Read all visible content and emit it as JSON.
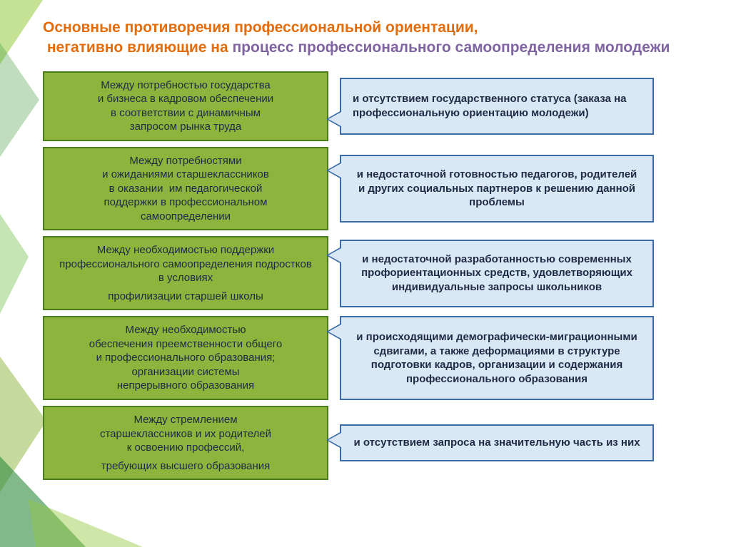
{
  "title_html": "<span style='color:#e46c0a'>Основные противоречия профессиональной ориентации,</span><br><span style='color:#e46c0a'>&nbsp;негативно влияющие на </span><span style='color:#8064a2'>процесс профессионального самоопределения молодежи</span>",
  "title_color_1": "#e46c0a",
  "title_color_2": "#8064a2",
  "left_bg": "#8db53e",
  "left_border": "#4a7d1a",
  "left_text_color": "#1f2a44",
  "right_bg": "#dae7f4",
  "right_border": "#3a6ca8",
  "right_text_color": "#1f2a44",
  "rows": [
    {
      "left": "Между потребностью государства<br>и бизнеса в кадровом обеспечении<br>в соответствии с динамичным<br>запросом рынка труда",
      "right": "и отсутствием государственного статуса (заказа на профессиональную ориентацию молодежи)",
      "right_bold": true,
      "tail_pos": "bottom",
      "left_h": 90,
      "right_h": 80
    },
    {
      "left": "Между потребностями<br>и ожиданиями старшеклассников<br>в оказании&nbsp; им педагогической<br>поддержки в профессиональном<br>самоопределении",
      "right": "и недостаточной готовностью педагогов, родителей и других социальных партнеров к решению данной проблемы",
      "right_bold": true,
      "right_align": "center",
      "tail_pos": "top",
      "left_h": 108,
      "right_h": 95
    },
    {
      "left": "Между необходимостью поддержки профессионального самоопределения подростков в условиях<br><div style='height:6px'></div>профилизации старшей школы",
      "right": "и недостаточной разработанностью современных профориентационных средств, удовлетворяющих индивидуальные запросы школьников",
      "right_bold": true,
      "right_align": "center",
      "tail_pos": "top",
      "left_h": 98,
      "right_h": 95
    },
    {
      "left": "Между необходимостью<br>обеспечения преемственности общего<br>и профессионального образования;<br>организации системы<br>непрерывного образования",
      "right": "и происходящими демографически-миграционными сдвигами, а также деформациями в структуре подготовки кадров, организации и содержания профессионального образования",
      "right_bold": true,
      "right_align": "center",
      "tail_pos": "top",
      "left_h": 108,
      "right_h": 118
    },
    {
      "left": "Между стремлением<br>старшеклассников и их родителей<br>к освоению профессий,<br><div style='height:6px'></div>требующих высшего образования",
      "right": "и отсутствием запроса на значительную часть из них",
      "right_bold": true,
      "right_align": "center",
      "tail_pos": "top",
      "left_h": 98,
      "right_h": 52
    }
  ]
}
